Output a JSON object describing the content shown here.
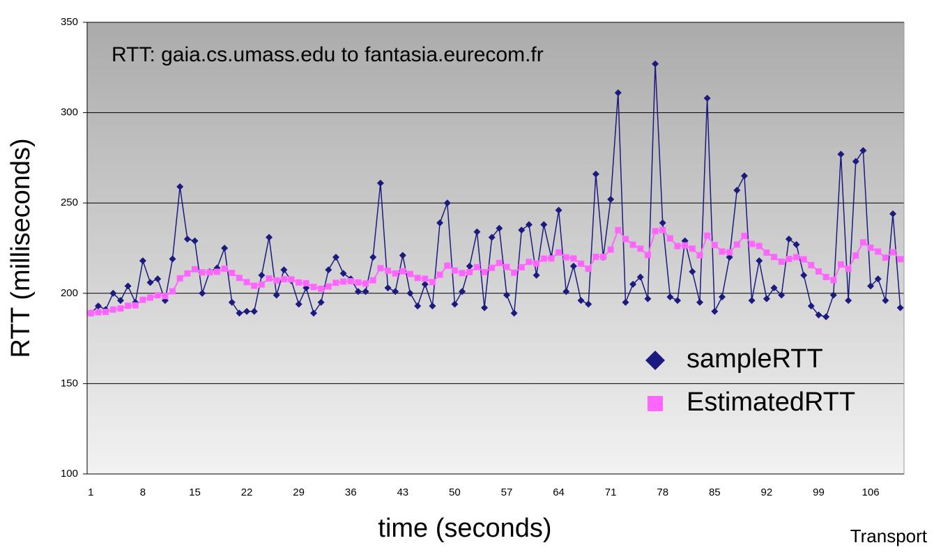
{
  "chart_data": {
    "type": "line",
    "title": "RTT: gaia.cs.umass.edu to fantasia.eurecom.fr",
    "x_label": "time (seconds)",
    "y_label": "RTT (milliseconds)",
    "annotations": [
      "Transport"
    ],
    "categories": [
      1,
      null,
      null,
      null,
      null,
      null,
      null,
      8,
      null,
      null,
      null,
      null,
      null,
      null,
      15,
      null,
      null,
      null,
      null,
      null,
      null,
      22,
      null,
      null,
      null,
      null,
      null,
      null,
      29,
      null,
      null,
      null,
      null,
      null,
      null,
      36,
      null,
      null,
      null,
      null,
      null,
      null,
      43,
      null,
      null,
      null,
      null,
      null,
      null,
      50,
      null,
      null,
      null,
      null,
      null,
      null,
      57,
      null,
      null,
      null,
      null,
      null,
      null,
      64,
      null,
      null,
      null,
      null,
      null,
      null,
      71,
      null,
      null,
      null,
      null,
      null,
      null,
      78,
      null,
      null,
      null,
      null,
      null,
      null,
      85,
      null,
      null,
      null,
      null,
      null,
      null,
      92,
      null,
      null,
      null,
      null,
      null,
      null,
      99,
      null,
      null,
      null,
      null,
      null,
      null,
      106,
      null,
      null,
      null,
      null
    ],
    "series": [
      {
        "name": "sampleRTT",
        "color": "#1a1a80",
        "marker": "diamond",
        "values": [
          189,
          193,
          191,
          200,
          196,
          204,
          195,
          218,
          206,
          208,
          196,
          219,
          259,
          230,
          229,
          200,
          212,
          214,
          225,
          195,
          189,
          190,
          190,
          210,
          231,
          199,
          213,
          207,
          194,
          203,
          189,
          195,
          213,
          220,
          211,
          208,
          201,
          201,
          220,
          261,
          203,
          201,
          221,
          200,
          193,
          205,
          193,
          239,
          250,
          194,
          201,
          215,
          234,
          192,
          231,
          236,
          199,
          189,
          235,
          238,
          210,
          238,
          220,
          246,
          201,
          215,
          196,
          194,
          266,
          220,
          252,
          311,
          195,
          205,
          209,
          197,
          327,
          239,
          198,
          196,
          229,
          212,
          195,
          308,
          190,
          198,
          220,
          257,
          265,
          196,
          218,
          197,
          203,
          199,
          230,
          227,
          210,
          193,
          188,
          187,
          199,
          277,
          196,
          273,
          279,
          204,
          208,
          196,
          244,
          192
        ]
      },
      {
        "name": "EstimatedRTT",
        "color": "#ff66ff",
        "marker": "square",
        "values": [
          189,
          189.5,
          189.7,
          191,
          191.6,
          193.1,
          193.3,
          196.4,
          197.6,
          198.9,
          198.5,
          201.1,
          208.3,
          211,
          213.3,
          211.6,
          211.6,
          211.9,
          213.6,
          211.3,
          208.5,
          206.2,
          204.2,
          204.9,
          208.2,
          207.1,
          207.8,
          207.7,
          206,
          205.6,
          203.5,
          202.5,
          203.8,
          205.8,
          206.5,
          206.7,
          206,
          205.4,
          207.2,
          213.9,
          212.5,
          211,
          212.2,
          210.7,
          208.5,
          208.1,
          206.2,
          210.3,
          215.3,
          212.6,
          211.2,
          211.7,
          214.5,
          211.7,
          214.1,
          216.8,
          214.6,
          211.4,
          214.4,
          217.4,
          216.5,
          219.2,
          219.3,
          222.6,
          219.9,
          219.3,
          216.4,
          213.6,
          220.2,
          220.2,
          224.2,
          235,
          230,
          226.9,
          224.7,
          221.2,
          234.4,
          235,
          230.4,
          226.1,
          226.5,
          224.7,
          221,
          231.9,
          226.7,
          223.1,
          222.7,
          227,
          231.8,
          227.3,
          226.2,
          222.5,
          220.1,
          217.5,
          219,
          220,
          218.8,
          215.6,
          212.1,
          209,
          207.3,
          216,
          213.5,
          220.9,
          228.2,
          225.2,
          223.1,
          219.7,
          222.7,
          218.9
        ]
      }
    ],
    "ylim": [
      100,
      350
    ],
    "yticks": [
      100,
      150,
      200,
      250,
      300,
      350
    ],
    "grid": true
  }
}
